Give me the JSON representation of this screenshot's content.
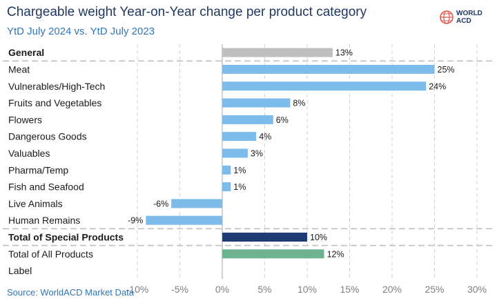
{
  "header": {
    "title": "Chargeable weight Year-on-Year change per product category",
    "subtitle": "YtD July 2024 vs. YtD July 2023",
    "logo_text": "WORLD\nACD",
    "source": "Source: WorldACD Market Data"
  },
  "colors": {
    "general": "#bfbfbf",
    "special_categories": "#7dbbeb",
    "special_total": "#1f3b73",
    "all_products": "#6db38f",
    "title": "#1f3864",
    "subtitle": "#2e75b6"
  },
  "chart_data": {
    "type": "bar",
    "orientation": "horizontal",
    "title": "Chargeable weight Year-on-Year change per product category",
    "subtitle": "YtD July 2024 vs. YtD July 2023",
    "categories": [
      "General",
      "Meat",
      "Vulnerables/High-Tech",
      "Fruits and Vegetables",
      "Flowers",
      "Dangerous Goods",
      "Valuables",
      "Pharma/Temp",
      "Fish and Seafood",
      "Live Animals",
      "Human Remains",
      "Total of Special Products",
      "Total of All Products",
      "Label"
    ],
    "values": [
      13,
      25,
      24,
      8,
      6,
      4,
      3,
      1,
      1,
      -6,
      -9,
      10,
      12,
      null
    ],
    "value_labels": [
      "13%",
      "25%",
      "24%",
      "8%",
      "6%",
      "4%",
      "3%",
      "1%",
      "1%",
      "-6%",
      "-9%",
      "10%",
      "12%",
      ""
    ],
    "bold_categories": [
      "General",
      "Total of Special Products"
    ],
    "bar_groups": [
      "general",
      "special_categories",
      "special_categories",
      "special_categories",
      "special_categories",
      "special_categories",
      "special_categories",
      "special_categories",
      "special_categories",
      "special_categories",
      "special_categories",
      "special_total",
      "all_products",
      "none"
    ],
    "unit": "%",
    "xlim": [
      -10,
      30
    ],
    "xticks": [
      -10,
      -5,
      0,
      5,
      10,
      15,
      20,
      25,
      30
    ],
    "xtick_labels": [
      "-10%",
      "-5%",
      "0%",
      "5%",
      "10%",
      "15%",
      "20%",
      "25%",
      "30%"
    ],
    "grid": "vertical dashed",
    "legend": "none",
    "xlabel": "",
    "ylabel": ""
  }
}
